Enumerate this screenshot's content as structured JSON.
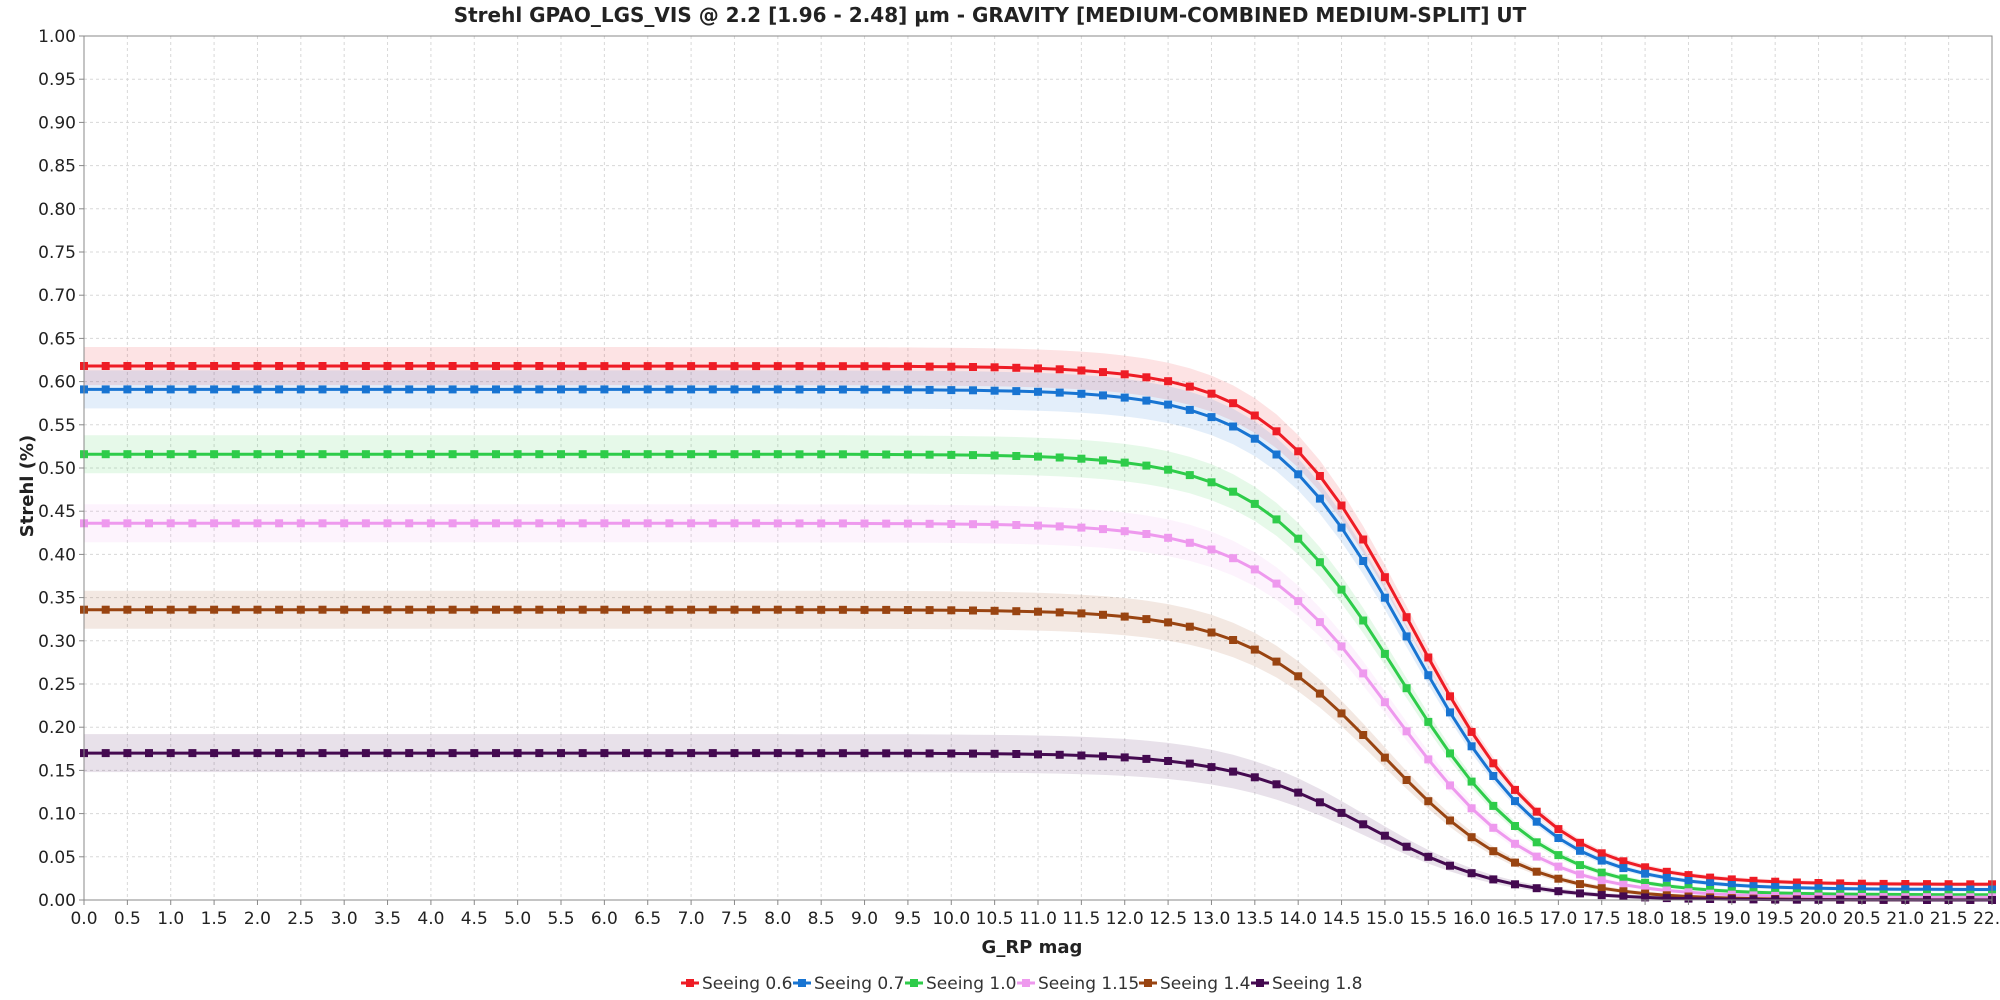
{
  "chart_data": {
    "type": "line",
    "title": "Strehl GPAO_LGS_VIS @ 2.2 [1.96 - 2.48] µm - GRAVITY [MEDIUM-COMBINED MEDIUM-SPLIT] UT",
    "xlabel": "G_RP mag",
    "ylabel": "Strehl (%)",
    "xlim": [
      0.0,
      22.0
    ],
    "ylim": [
      0.0,
      1.0
    ],
    "x_ticks": [
      "0.0",
      "0.5",
      "1.0",
      "1.5",
      "2.0",
      "2.5",
      "3.0",
      "3.5",
      "4.0",
      "4.5",
      "5.0",
      "5.5",
      "6.0",
      "6.5",
      "7.0",
      "7.5",
      "8.0",
      "8.5",
      "9.0",
      "9.5",
      "10.0",
      "10.5",
      "11.0",
      "11.5",
      "12.0",
      "12.5",
      "13.0",
      "13.5",
      "14.0",
      "14.5",
      "15.0",
      "15.5",
      "16.0",
      "16.5",
      "17.0",
      "17.5",
      "18.0",
      "18.5",
      "19.0",
      "19.5",
      "20.0",
      "20.5",
      "21.0",
      "21.5",
      "22.0"
    ],
    "y_ticks": [
      "0.00",
      "0.05",
      "0.10",
      "0.15",
      "0.20",
      "0.25",
      "0.30",
      "0.35",
      "0.40",
      "0.45",
      "0.50",
      "0.55",
      "0.60",
      "0.65",
      "0.70",
      "0.75",
      "0.80",
      "0.85",
      "0.90",
      "0.95",
      "1.00"
    ],
    "grid": true,
    "legend_position": "bottom-center",
    "x_step": 0.25,
    "series": [
      {
        "name": "Seeing 0.6",
        "color": "#ee1c25",
        "plateau": 0.618,
        "floor": 0.018,
        "m50": 15.3,
        "width": 0.8
      },
      {
        "name": "Seeing 0.7",
        "color": "#1874d2",
        "plateau": 0.591,
        "floor": 0.012,
        "m50": 15.27,
        "width": 0.8
      },
      {
        "name": "Seeing 1.0",
        "color": "#2ecc4a",
        "plateau": 0.516,
        "floor": 0.006,
        "m50": 15.15,
        "width": 0.8
      },
      {
        "name": "Seeing 1.15",
        "color": "#ee99ee",
        "plateau": 0.436,
        "floor": 0.003,
        "m50": 15.07,
        "width": 0.8
      },
      {
        "name": "Seeing 1.4",
        "color": "#994411",
        "plateau": 0.336,
        "floor": 0.0,
        "m50": 14.97,
        "width": 0.8
      },
      {
        "name": "Seeing 1.8",
        "color": "#440a50",
        "plateau": 0.17,
        "floor": 0.0,
        "m50": 14.8,
        "width": 0.8
      }
    ]
  }
}
